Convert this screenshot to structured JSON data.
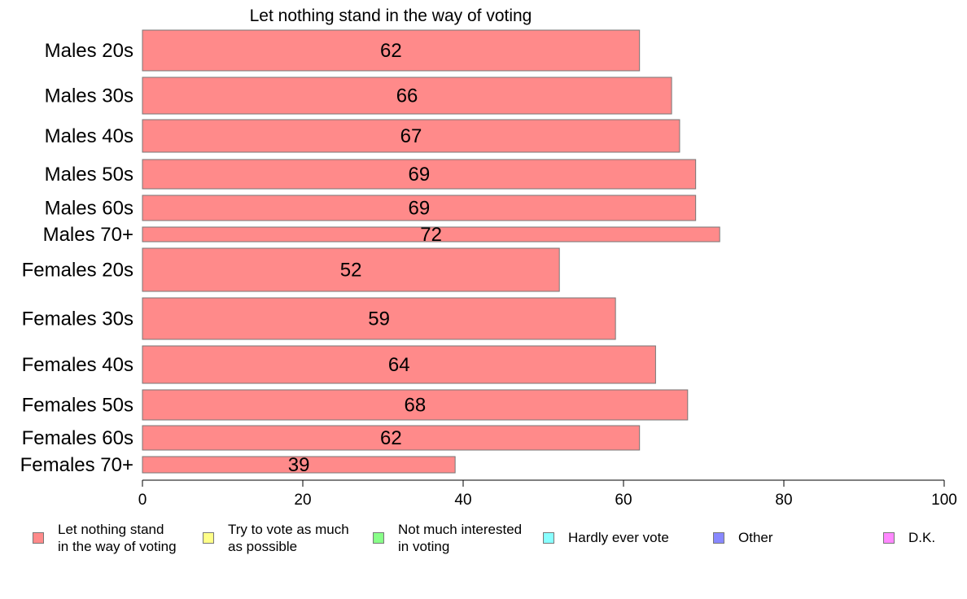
{
  "chart_data": {
    "type": "bar",
    "orientation": "horizontal",
    "title": "Let nothing stand in the way of voting",
    "categories": [
      "Males 20s",
      "Males 30s",
      "Males 40s",
      "Males 50s",
      "Males 60s",
      "Males 70+",
      "Females 20s",
      "Females 30s",
      "Females 40s",
      "Females 50s",
      "Females 60s",
      "Females 70+"
    ],
    "values": [
      62,
      66,
      67,
      69,
      69,
      72,
      52,
      59,
      64,
      68,
      62,
      39
    ],
    "value_labels": [
      "62",
      "66",
      "67",
      "69",
      "69",
      "72",
      "52",
      "59",
      "64",
      "68",
      "62",
      "39"
    ],
    "xlim": [
      0,
      100
    ],
    "x_ticks": [
      0,
      20,
      40,
      60,
      80,
      100
    ],
    "x_tick_labels": [
      "0",
      "20",
      "40",
      "60",
      "80",
      "100"
    ],
    "grid": false,
    "bar_color": "#ff8a8a",
    "legend_position": "bottom",
    "legend": [
      {
        "label": "Let nothing stand\nin the way of voting",
        "color": "#ff8a8a"
      },
      {
        "label": "Try to vote as much\nas possible",
        "color": "#ffff88"
      },
      {
        "label": "Not much interested\nin voting",
        "color": "#88ff88"
      },
      {
        "label": "Hardly ever vote",
        "color": "#88ffff"
      },
      {
        "label": "Other",
        "color": "#8888ff"
      },
      {
        "label": "D.K.",
        "color": "#ff88ff"
      }
    ]
  }
}
